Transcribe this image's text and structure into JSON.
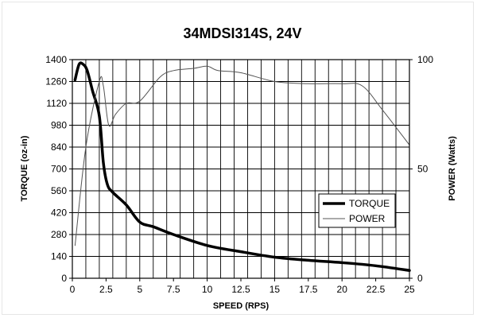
{
  "chart_data": {
    "type": "line",
    "title": "34MDSI314S, 24V",
    "xlabel": "SPEED (RPS)",
    "ylabel_left": "TORQUE (oz-in)",
    "ylabel_right": "POWER (Watts)",
    "xlim": [
      0,
      25
    ],
    "ylim_left": [
      0,
      1400
    ],
    "ylim_right": [
      0,
      100
    ],
    "x_ticks": [
      "0",
      "2.5",
      "5",
      "7.5",
      "10",
      "12.5",
      "15",
      "17.5",
      "20",
      "22.5",
      "25"
    ],
    "x_tick_values": [
      0,
      2.5,
      5,
      7.5,
      10,
      12.5,
      15,
      17.5,
      20,
      22.5,
      25
    ],
    "y_left_ticks": [
      "0",
      "140",
      "280",
      "420",
      "560",
      "700",
      "840",
      "980",
      "1120",
      "1260",
      "1400"
    ],
    "y_left_tick_values": [
      0,
      140,
      280,
      420,
      560,
      700,
      840,
      980,
      1120,
      1260,
      1400
    ],
    "y_right_ticks": [
      "0",
      "50",
      "100"
    ],
    "y_right_tick_values": [
      0,
      50,
      100
    ],
    "grid": true,
    "x_minor_step": 1,
    "legend_position": "lower-right",
    "series": [
      {
        "name": "TORQUE",
        "axis": "left",
        "color": "#000000",
        "weight": "thick",
        "x": [
          0.2,
          0.5,
          0.8,
          1.1,
          1.5,
          2.0,
          2.3,
          2.6,
          3.0,
          4.0,
          5.0,
          6.0,
          7.5,
          10,
          12.5,
          15,
          17.5,
          20,
          22.5,
          25
        ],
        "y": [
          1270,
          1370,
          1370,
          1330,
          1200,
          1040,
          740,
          600,
          550,
          470,
          360,
          330,
          280,
          210,
          170,
          135,
          115,
          100,
          80,
          50
        ]
      },
      {
        "name": "POWER",
        "axis": "right",
        "color": "#555555",
        "weight": "thin",
        "x": [
          0.2,
          1.0,
          2.0,
          2.3,
          2.7,
          3.2,
          4.0,
          5.0,
          6.5,
          7.5,
          9.0,
          10.0,
          10.8,
          12.5,
          15.0,
          17.5,
          20.0,
          21.5,
          23.0,
          25.0
        ],
        "y": [
          15,
          60,
          90,
          88,
          70,
          75,
          80,
          81,
          92,
          95,
          96,
          97,
          95,
          94,
          90,
          89,
          89,
          88,
          77,
          61
        ]
      }
    ]
  }
}
